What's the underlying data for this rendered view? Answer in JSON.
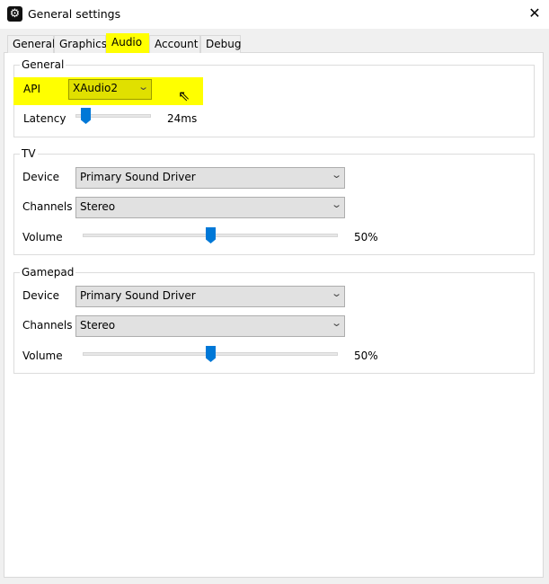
{
  "window": {
    "title": "General settings",
    "icon": "gear-icon",
    "close": "✕"
  },
  "tabs": [
    {
      "label": "General"
    },
    {
      "label": "Graphics"
    },
    {
      "label": "Audio",
      "active": true
    },
    {
      "label": "Account"
    },
    {
      "label": "Debug"
    }
  ],
  "highlight_color": "#ffff00",
  "general": {
    "title": "General",
    "api_label": "API",
    "api_value": "XAudio2",
    "latency_label": "Latency",
    "latency_value": "24ms"
  },
  "tv": {
    "title": "TV",
    "device_label": "Device",
    "device_value": "Primary Sound Driver",
    "channels_label": "Channels",
    "channels_value": "Stereo",
    "volume_label": "Volume",
    "volume_value": "50%",
    "volume_level": 50
  },
  "gamepad": {
    "title": "Gamepad",
    "device_label": "Device",
    "device_value": "Primary Sound Driver",
    "channels_label": "Channels",
    "channels_value": "Stereo",
    "volume_label": "Volume",
    "volume_value": "50%",
    "volume_level": 50
  }
}
